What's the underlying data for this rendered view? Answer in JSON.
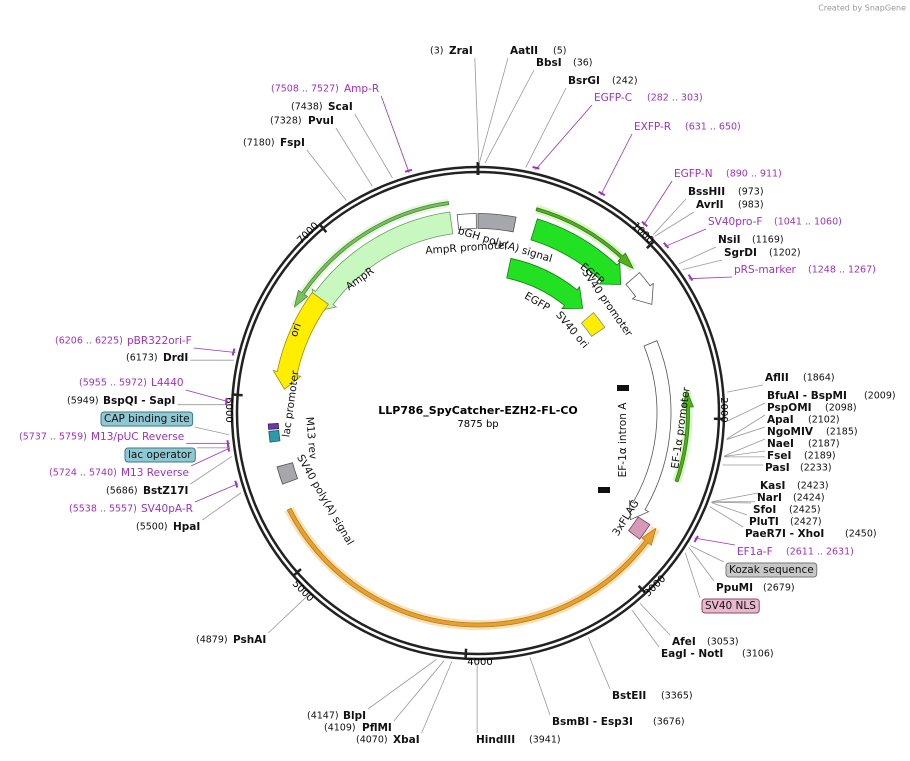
{
  "credit": "Created by SnapGene",
  "title": "LLP786_SpyCatcher-EZH2-FL-CO",
  "length": "7875 bp",
  "ticks": [
    "1000",
    "2000",
    "3000",
    "4000",
    "5000",
    "6000",
    "7000"
  ],
  "sites": [
    {
      "name": "ZraI",
      "position": "(3)"
    },
    {
      "name": "AatII",
      "position": "(5)"
    },
    {
      "name": "BbsI",
      "position": "(36)"
    },
    {
      "name": "BsrGI",
      "position": "(242)"
    },
    {
      "name": "BssHII",
      "position": "(973)"
    },
    {
      "name": "AvrII",
      "position": "(983)"
    },
    {
      "name": "NsiI",
      "position": "(1169)"
    },
    {
      "name": "SgrDI",
      "position": "(1202)"
    },
    {
      "name": "AflII",
      "position": "(1864)"
    },
    {
      "name": "BfuAI - BspMI",
      "position": "(2009)"
    },
    {
      "name": "PspOMI",
      "position": "(2098)"
    },
    {
      "name": "ApaI",
      "position": "(2102)"
    },
    {
      "name": "NgoMIV",
      "position": "(2185)"
    },
    {
      "name": "NaeI",
      "position": "(2187)"
    },
    {
      "name": "FseI",
      "position": "(2189)"
    },
    {
      "name": "PasI",
      "position": "(2233)"
    },
    {
      "name": "KasI",
      "position": "(2423)"
    },
    {
      "name": "NarI",
      "position": "(2424)"
    },
    {
      "name": "SfoI",
      "position": "(2425)"
    },
    {
      "name": "PluTI",
      "position": "(2427)"
    },
    {
      "name": "PaeR7I - XhoI",
      "position": "(2450)"
    },
    {
      "name": "PpuMI",
      "position": "(2679)"
    },
    {
      "name": "AfeI",
      "position": "(3053)"
    },
    {
      "name": "EagI - NotI",
      "position": "(3106)"
    },
    {
      "name": "BstEII",
      "position": "(3365)"
    },
    {
      "name": "BsmBI - Esp3I",
      "position": "(3676)"
    },
    {
      "name": "HindIII",
      "position": "(3941)"
    },
    {
      "name": "XbaI",
      "position": "(4070)"
    },
    {
      "name": "PflMI",
      "position": "(4109)"
    },
    {
      "name": "BlpI",
      "position": "(4147)"
    },
    {
      "name": "PshAI",
      "position": "(4879)"
    },
    {
      "name": "HpaI",
      "position": "(5500)"
    },
    {
      "name": "BstZ17I",
      "position": "(5686)"
    },
    {
      "name": "BspQI - SapI",
      "position": "(5949)"
    },
    {
      "name": "DrdI",
      "position": "(6173)"
    },
    {
      "name": "FspI",
      "position": "(7180)"
    },
    {
      "name": "PvuI",
      "position": "(7328)"
    },
    {
      "name": "ScaI",
      "position": "(7438)"
    }
  ],
  "primers": [
    {
      "name": "EGFP-C",
      "range": "(282 .. 303)"
    },
    {
      "name": "EXFP-R",
      "range": "(631 .. 650)"
    },
    {
      "name": "EGFP-N",
      "range": "(890 .. 911)"
    },
    {
      "name": "SV40pro-F",
      "range": "(1041 .. 1060)"
    },
    {
      "name": "pRS-marker",
      "range": "(1248 .. 1267)"
    },
    {
      "name": "EF1a-F",
      "range": "(2611 .. 2631)"
    },
    {
      "name": "SV40pA-R",
      "range": "(5538 .. 5557)"
    },
    {
      "name": "M13 Reverse",
      "range": "(5724 .. 5740)"
    },
    {
      "name": "M13/pUC Reverse",
      "range": "(5737 .. 5759)"
    },
    {
      "name": "L4440",
      "range": "(5955 .. 5972)"
    },
    {
      "name": "pBR322ori-F",
      "range": "(6206 .. 6225)"
    },
    {
      "name": "Amp-R",
      "range": "(7508 .. 7527)"
    }
  ],
  "features": [
    "Kozak sequence",
    "SV40 NLS",
    "lac operator",
    "CAP binding site"
  ],
  "map_labels": [
    "bGH poly(A) signal",
    "AmpR promoter",
    "AmpR",
    "EGFP",
    "SV40 promoter",
    "EGFP",
    "SV40 ori",
    "ori",
    "lac promoter",
    "M13 rev",
    "SV40 poly(A) signal",
    "EF-1α intron A",
    "EF-1α promoter",
    "3xFLAG"
  ]
}
